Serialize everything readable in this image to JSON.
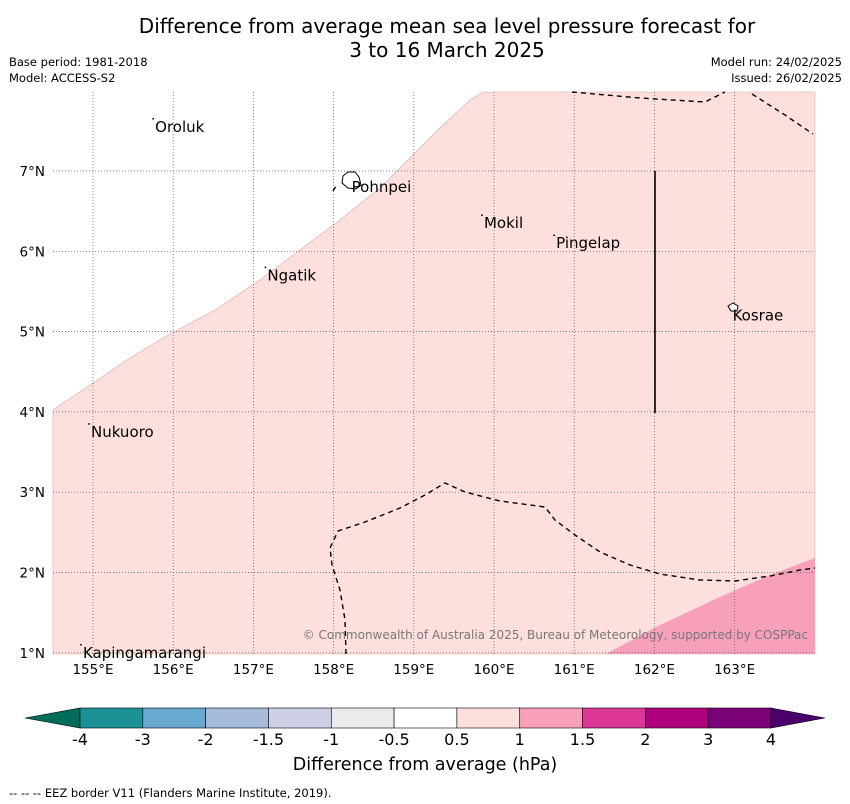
{
  "title_line1": "Difference from average mean sea level pressure forecast for",
  "title_line2": "3 to 16 March 2025",
  "base_period": "Base period: 1981-2018",
  "model": "Model: ACCESS-S2",
  "model_run": "Model run: 24/02/2025",
  "issued": "Issued: 26/02/2025",
  "copyright": "© Commonwealth of Australia 2025, Bureau of Meteorology, supported by COSPPac",
  "footnote": "--  --  -- EEZ border V11 (Flanders Marine Institute, 2019).",
  "x_ticks": [
    "155°E",
    "156°E",
    "157°E",
    "158°E",
    "159°E",
    "160°E",
    "161°E",
    "162°E",
    "163°E"
  ],
  "y_ticks": [
    "7°N",
    "6°N",
    "5°N",
    "4°N",
    "3°N",
    "2°N",
    "1°N"
  ],
  "places": [
    {
      "name": "Oroluk",
      "lon": 155.75,
      "lat": 7.65
    },
    {
      "name": "Pohnpei",
      "lon": 158.2,
      "lat": 6.9
    },
    {
      "name": "Mokil",
      "lon": 159.85,
      "lat": 6.45
    },
    {
      "name": "Pingelap",
      "lon": 160.75,
      "lat": 6.2
    },
    {
      "name": "Ngatik",
      "lon": 157.15,
      "lat": 5.8
    },
    {
      "name": "Kosrae",
      "lon": 162.95,
      "lat": 5.3
    },
    {
      "name": "Nukuoro",
      "lon": 154.95,
      "lat": 3.85
    },
    {
      "name": "Kapingamarangi",
      "lon": 154.85,
      "lat": 1.1
    }
  ],
  "colorbar": {
    "title": "Difference from average (hPa)",
    "labels": [
      "-4",
      "-3",
      "-2",
      "-1.5",
      "-1",
      "-0.5",
      "0.5",
      "1",
      "1.5",
      "2",
      "3",
      "4"
    ],
    "colors": [
      "#1b9195",
      "#68a9cf",
      "#a7bbdb",
      "#cdcfe4",
      "#ebebeb",
      "#ffffff",
      "#fde0de",
      "#f8a0b9",
      "#dc3795",
      "#ae017e",
      "#7a0177"
    ],
    "extend_low": "#016c59",
    "extend_high": "#49006a"
  },
  "fields": {
    "light_pink": "#fde0de",
    "pink": "#f8a0b9"
  }
}
